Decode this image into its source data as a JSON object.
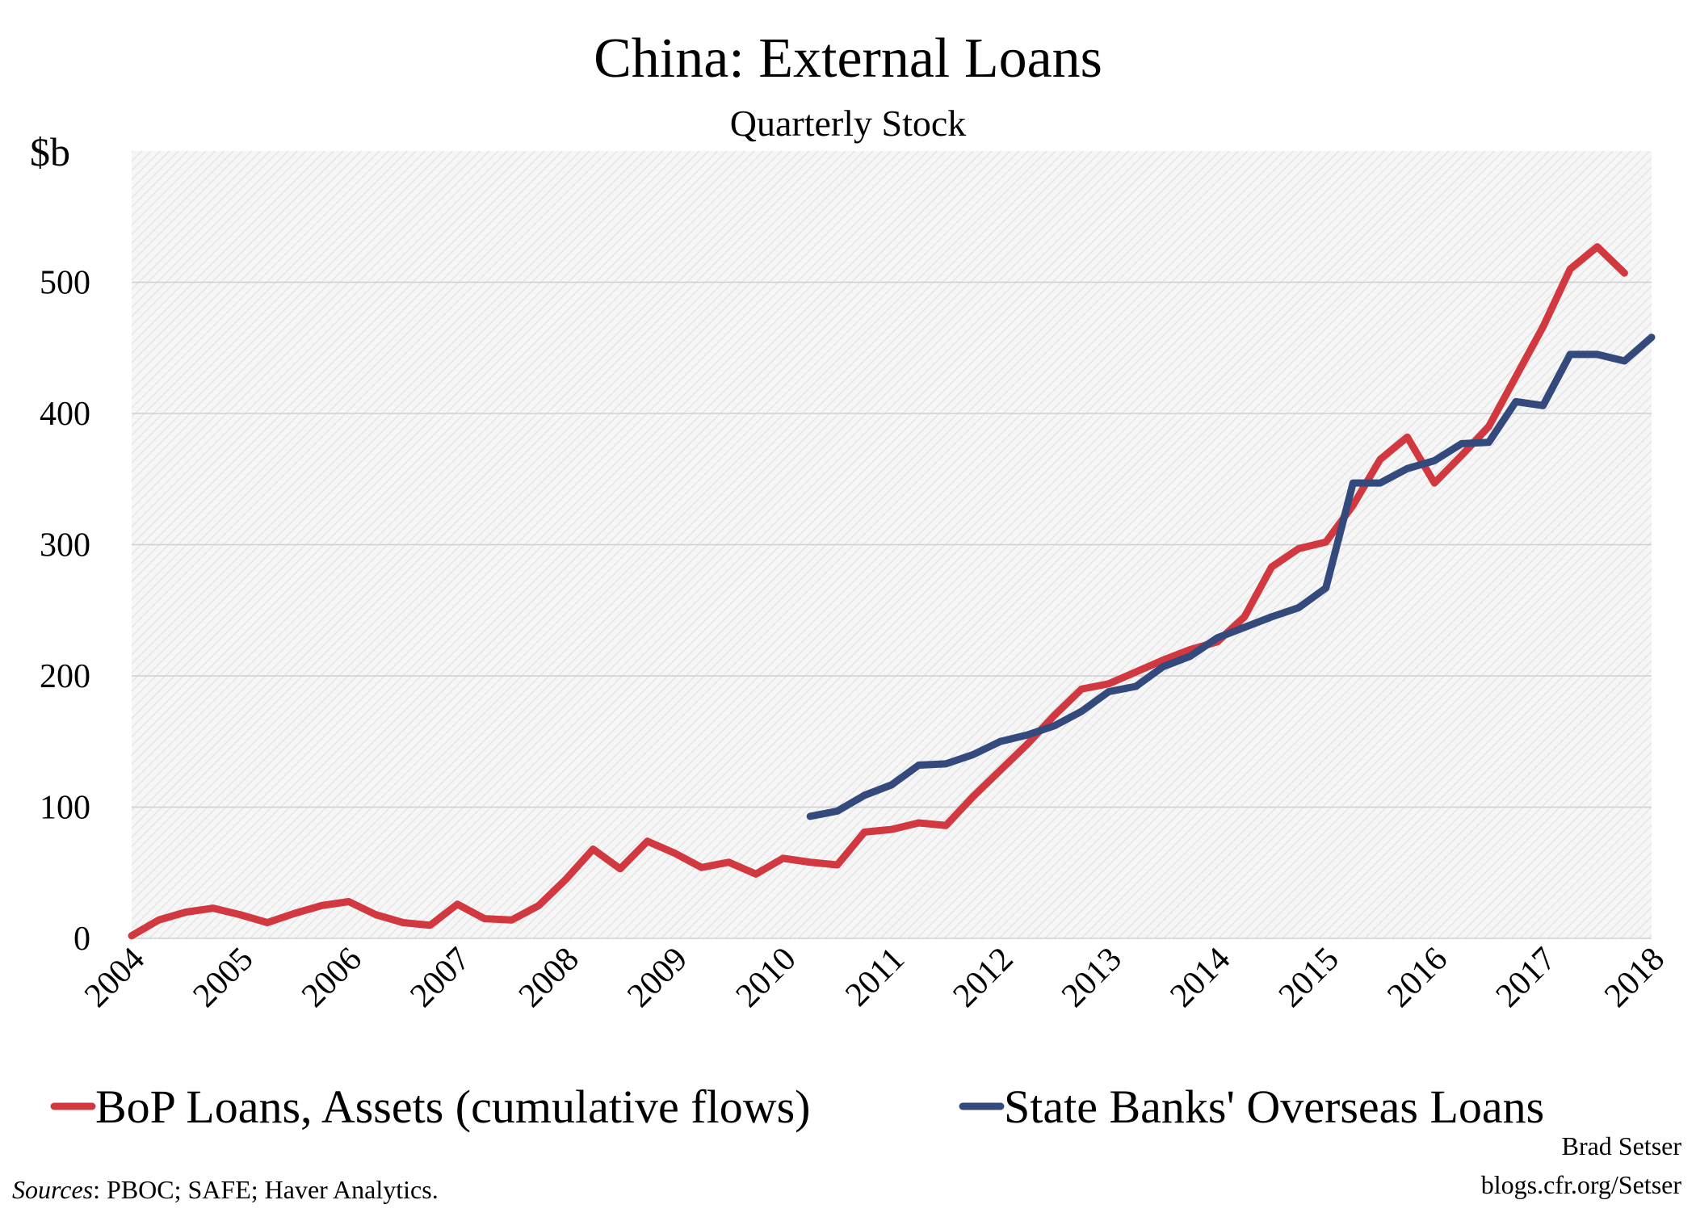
{
  "chart_data": {
    "type": "line",
    "title": "China: External Loans",
    "subtitle": "Quarterly Stock",
    "y_label": "$b",
    "categories": [
      "2004",
      null,
      null,
      null,
      "2005",
      null,
      null,
      null,
      "2006",
      null,
      null,
      null,
      "2007",
      null,
      null,
      null,
      "2008",
      null,
      null,
      null,
      "2009",
      null,
      null,
      null,
      "2010",
      null,
      null,
      null,
      "2011",
      null,
      null,
      null,
      "2012",
      null,
      null,
      null,
      "2013",
      null,
      null,
      null,
      "2014",
      null,
      null,
      null,
      "2015",
      null,
      null,
      null,
      "2016",
      null,
      null,
      null,
      "2017",
      null,
      null,
      null,
      "2018"
    ],
    "series": [
      {
        "name": "BoP Loans, Assets (cumulative flows)",
        "color": "#d2383f",
        "values": [
          2,
          14,
          20,
          23,
          18,
          12,
          19,
          25,
          28,
          18,
          12,
          10,
          26,
          15,
          14,
          25,
          45,
          68,
          53,
          74,
          65,
          54,
          58,
          49,
          61,
          58,
          56,
          81,
          83,
          88,
          86,
          108,
          128,
          148,
          170,
          190,
          194,
          203,
          212,
          220,
          226,
          245,
          283,
          297,
          302,
          330,
          365,
          382,
          347,
          368,
          390,
          428,
          466,
          510,
          527,
          507,
          null
        ]
      },
      {
        "name": "State Banks' Overseas Loans",
        "color": "#34497c",
        "values": [
          null,
          null,
          null,
          null,
          null,
          null,
          null,
          null,
          null,
          null,
          null,
          null,
          null,
          null,
          null,
          null,
          null,
          null,
          null,
          null,
          null,
          null,
          null,
          null,
          null,
          93,
          97,
          109,
          117,
          132,
          133,
          140,
          150,
          155,
          162,
          173,
          188,
          192,
          207,
          215,
          229,
          237,
          245,
          252,
          267,
          347,
          347,
          358,
          364,
          377,
          378,
          409,
          406,
          445,
          445,
          440,
          458
        ]
      }
    ],
    "ylim": [
      0,
      600
    ],
    "yticks": [
      0,
      100,
      200,
      300,
      400,
      500
    ],
    "grid": true,
    "legend": "bottom",
    "credit": [
      "Brad Setser",
      "blogs.cfr.org/Setser"
    ],
    "source_label": "Sources",
    "source": ": PBOC; SAFE; Haver Analytics."
  }
}
